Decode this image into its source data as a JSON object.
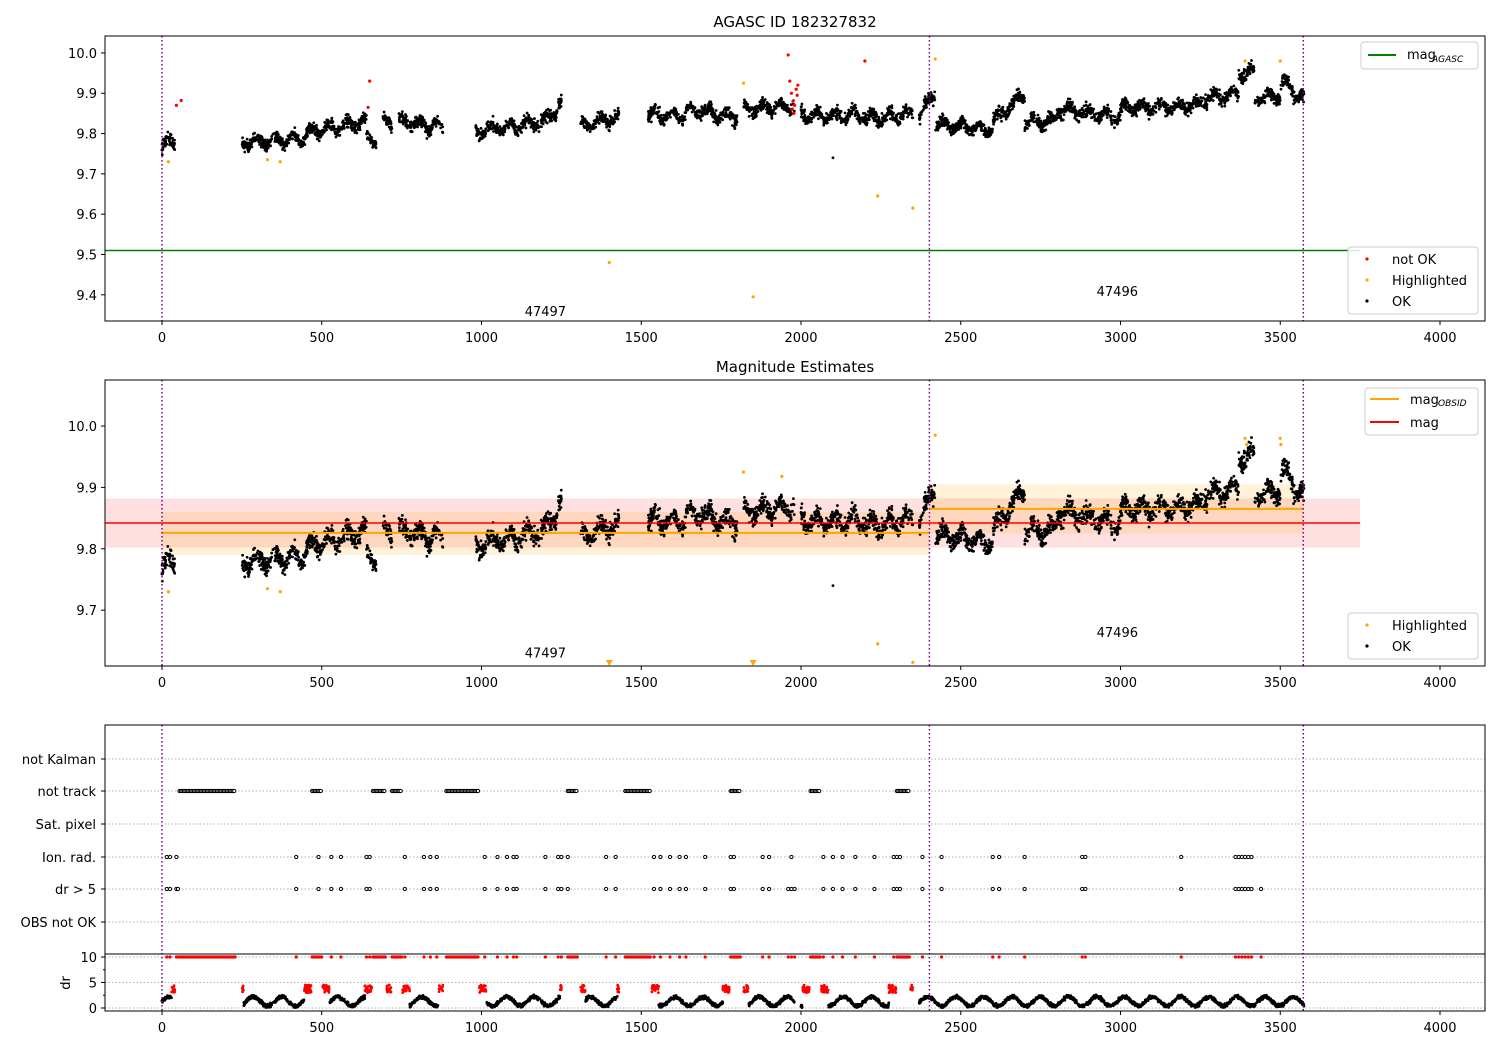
{
  "chart_data": [
    {
      "type": "scatter",
      "title": "AGASC ID 182327832",
      "xlim": [
        -178,
        4141
      ],
      "ylim": [
        9.335,
        10.042
      ],
      "xticks": [
        "0",
        "500",
        "1000",
        "1500",
        "2000",
        "2500",
        "3000",
        "3500",
        "4000"
      ],
      "yticks": [
        "9.4",
        "9.5",
        "9.6",
        "9.7",
        "9.8",
        "9.9",
        "10.0"
      ],
      "mag_agasc": 9.51,
      "mag_agasc_xrange": [
        -178,
        3750
      ],
      "legend_top": {
        "label": "mag",
        "sub": "AGASC",
        "color": "#008000"
      },
      "legend_bottom": [
        {
          "label": "not OK",
          "color": "#ff0000"
        },
        {
          "label": "Highlighted",
          "color": "#ffa500"
        },
        {
          "label": "OK",
          "color": "#000000"
        }
      ],
      "obsid_boundaries": [
        0,
        2402,
        3572
      ],
      "obsid_labels": [
        {
          "text": "47497",
          "x": 1200,
          "y": 9.36
        },
        {
          "text": "47496",
          "x": 2990,
          "y": 9.41
        }
      ],
      "ok_trend_segments": [
        [
          0,
          40,
          9.765,
          9.785
        ],
        [
          250,
          450,
          9.775,
          9.79
        ],
        [
          450,
          640,
          9.8,
          9.83
        ],
        [
          640,
          670,
          9.79,
          9.78
        ],
        [
          690,
          720,
          9.83,
          9.83
        ],
        [
          740,
          880,
          9.83,
          9.815
        ],
        [
          980,
          1200,
          9.805,
          9.83
        ],
        [
          1200,
          1250,
          9.83,
          9.875
        ],
        [
          1310,
          1430,
          9.82,
          9.84
        ],
        [
          1520,
          1640,
          9.845,
          9.845
        ],
        [
          1640,
          1800,
          9.86,
          9.84
        ],
        [
          1820,
          1980,
          9.86,
          9.87
        ],
        [
          2000,
          2200,
          9.845,
          9.845
        ],
        [
          2200,
          2350,
          9.835,
          9.85
        ],
        [
          2370,
          2420,
          9.84,
          9.905
        ],
        [
          2420,
          2600,
          9.825,
          9.81
        ],
        [
          2600,
          2700,
          9.83,
          9.9
        ],
        [
          2700,
          2800,
          9.83,
          9.83
        ],
        [
          2800,
          3000,
          9.86,
          9.84
        ],
        [
          3000,
          3250,
          9.865,
          9.87
        ],
        [
          3250,
          3370,
          9.885,
          9.9
        ],
        [
          3370,
          3420,
          9.95,
          9.95
        ],
        [
          3420,
          3500,
          9.89,
          9.895
        ],
        [
          3500,
          3575,
          9.93,
          9.885
        ]
      ],
      "ok_outliers": [
        [
          2100,
          9.74
        ]
      ],
      "highlighted_points": [
        [
          20,
          9.73
        ],
        [
          330,
          9.735
        ],
        [
          370,
          9.73
        ],
        [
          1400,
          9.48
        ],
        [
          1820,
          9.925
        ],
        [
          1850,
          9.395
        ],
        [
          2240,
          9.645
        ],
        [
          2350,
          9.615
        ],
        [
          2420,
          9.985
        ],
        [
          3390,
          9.98
        ],
        [
          3500,
          9.98
        ]
      ],
      "not_ok_points": [
        [
          45,
          9.87
        ],
        [
          60,
          9.882
        ],
        [
          645,
          9.865
        ],
        [
          650,
          9.93
        ],
        [
          1960,
          9.995
        ],
        [
          1965,
          9.93
        ],
        [
          1970,
          9.9
        ],
        [
          1975,
          9.88
        ],
        [
          1980,
          9.87
        ],
        [
          1985,
          9.91
        ],
        [
          1990,
          9.92
        ],
        [
          1972,
          9.86
        ],
        [
          1978,
          9.85
        ],
        [
          1988,
          9.895
        ],
        [
          2200,
          9.98
        ]
      ]
    },
    {
      "type": "scatter",
      "title": "Magnitude Estimates",
      "xlim": [
        -178,
        4141
      ],
      "ylim": [
        9.609,
        10.075
      ],
      "xticks": [
        "0",
        "500",
        "1000",
        "1500",
        "2000",
        "2500",
        "3000",
        "3500",
        "4000"
      ],
      "yticks": [
        "9.7",
        "9.8",
        "9.9",
        "10.0"
      ],
      "mag": {
        "value": 9.842,
        "band": [
          9.802,
          9.882
        ],
        "xrange": [
          -178,
          3750
        ],
        "color": "#ff0000"
      },
      "mag_obsid": [
        {
          "obsid": "47497",
          "value": 9.826,
          "band": [
            9.79,
            9.86
          ],
          "xrange": [
            0,
            2402
          ]
        },
        {
          "obsid": "47496",
          "value": 9.865,
          "band": [
            9.825,
            9.905
          ],
          "xrange": [
            2402,
            3572
          ]
        }
      ],
      "legend_top": [
        {
          "label": "mag",
          "sub": "OBSID",
          "color": "#ffa500"
        },
        {
          "label": "mag",
          "sub": "",
          "color": "#ff0000"
        }
      ],
      "legend_bottom": [
        {
          "label": "Highlighted",
          "color": "#ffa500"
        },
        {
          "label": "OK",
          "color": "#000000"
        }
      ],
      "obsid_labels": [
        {
          "text": "47497",
          "x": 1200,
          "y": 9.631
        },
        {
          "text": "47496",
          "x": 2990,
          "y": 9.664
        }
      ],
      "highlighted_points": [
        [
          20,
          9.73
        ],
        [
          330,
          9.735
        ],
        [
          370,
          9.73
        ],
        [
          1820,
          9.925
        ],
        [
          1940,
          9.918
        ],
        [
          2240,
          9.645
        ],
        [
          2350,
          9.615
        ],
        [
          2420,
          9.985
        ],
        [
          3390,
          9.98
        ],
        [
          3395,
          9.97
        ],
        [
          3500,
          9.98
        ],
        [
          3502,
          9.97
        ]
      ],
      "highlighted_offscale": [
        1400,
        1850
      ]
    },
    {
      "type": "scatter",
      "title": "",
      "xlim": [
        -178,
        4141
      ],
      "xticks": [
        "0",
        "500",
        "1000",
        "1500",
        "2000",
        "2500",
        "3000",
        "3500",
        "4000"
      ],
      "flag_rows": [
        "not Kalman",
        "not track",
        "Sat. pixel",
        "Ion. rad.",
        "dr > 5",
        "OBS not OK"
      ],
      "not_track_ranges": [
        [
          55,
          230
        ],
        [
          470,
          500
        ],
        [
          660,
          700
        ],
        [
          720,
          750
        ],
        [
          890,
          990
        ],
        [
          1270,
          1300
        ],
        [
          1450,
          1530
        ],
        [
          1780,
          1810
        ],
        [
          2030,
          2060
        ],
        [
          2300,
          2340
        ]
      ],
      "ion_rad_x": [
        15,
        25,
        45,
        420,
        490,
        530,
        560,
        640,
        650,
        760,
        820,
        840,
        860,
        1010,
        1050,
        1080,
        1100,
        1110,
        1200,
        1240,
        1250,
        1270,
        1390,
        1420,
        1540,
        1560,
        1590,
        1620,
        1640,
        1700,
        1780,
        1790,
        1880,
        1900,
        1970,
        2070,
        2100,
        2130,
        2170,
        2230,
        2290,
        2300,
        2310,
        2380,
        2440,
        2600,
        2620,
        2700,
        2880,
        2890,
        3190,
        3360,
        3370,
        3380,
        3390,
        3400,
        3410
      ],
      "dr_gt5_x": [
        15,
        25,
        45,
        50,
        420,
        490,
        530,
        560,
        640,
        650,
        760,
        820,
        840,
        860,
        1010,
        1050,
        1080,
        1100,
        1110,
        1200,
        1240,
        1250,
        1270,
        1390,
        1420,
        1540,
        1560,
        1590,
        1620,
        1640,
        1700,
        1780,
        1790,
        1880,
        1900,
        1960,
        1970,
        1980,
        2070,
        2100,
        2130,
        2170,
        2230,
        2290,
        2300,
        2310,
        2380,
        2440,
        2600,
        2620,
        2700,
        2880,
        2890,
        3190,
        3360,
        3370,
        3380,
        3390,
        3400,
        3410,
        3440
      ],
      "dr_ylabel": "dr",
      "dr_yticks": [
        "0",
        "5",
        "10"
      ],
      "dr_ylim": [
        -0.59,
        10.59
      ]
    }
  ]
}
